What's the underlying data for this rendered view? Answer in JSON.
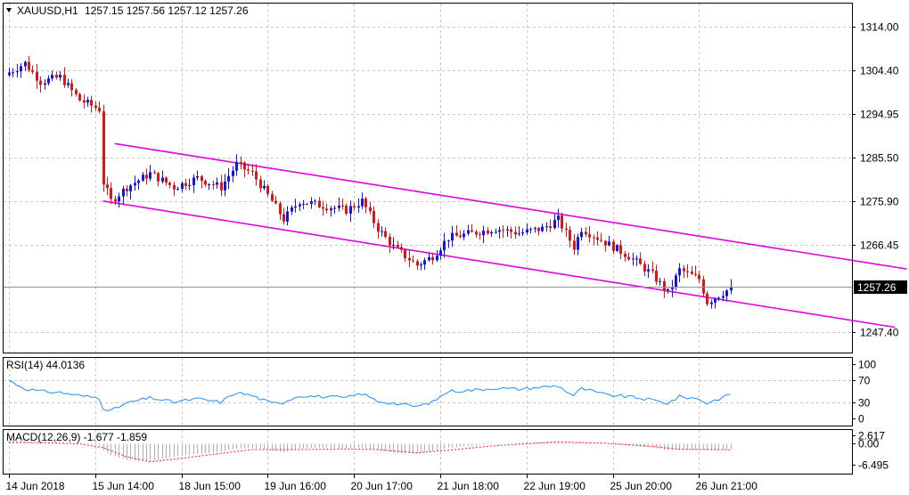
{
  "header": {
    "symbol_label": "XAUUSD,H1",
    "ohlc_text": "1257.15 1257.56 1257.12 1257.26"
  },
  "colors": {
    "bull": "#1414e6",
    "bear": "#d81818",
    "channel": "#e000e0",
    "rsi_line": "#1e90ff",
    "macd_hist": "#b4b4b4",
    "macd_signal": "#ff2020",
    "background": "#ffffff"
  },
  "chart_data": [
    {
      "type": "candlestick",
      "pane": "price",
      "yticks": [
        "1314.00",
        "1304.40",
        "1294.95",
        "1285.50",
        "1275.90",
        "1266.45",
        "1257.26",
        "1247.40"
      ],
      "current_price_label": "1257.26",
      "ylim": [
        1243,
        1319
      ],
      "xticks": [
        "14 Jun 2018",
        "15 Jun 14:00",
        "18 Jun 15:00",
        "19 Jun 16:00",
        "20 Jun 17:00",
        "21 Jun 18:00",
        "22 Jun 19:00",
        "25 Jun 20:00",
        "26 Jun 21:00"
      ],
      "close_path": [
        [
          0,
          1304
        ],
        [
          4,
          1306
        ],
        [
          8,
          1302
        ],
        [
          13,
          1303
        ],
        [
          18,
          1298
        ],
        [
          23,
          1296
        ],
        [
          24,
          1280
        ],
        [
          26,
          1276
        ],
        [
          30,
          1279
        ],
        [
          36,
          1282
        ],
        [
          42,
          1279
        ],
        [
          48,
          1281
        ],
        [
          54,
          1279
        ],
        [
          58,
          1284
        ],
        [
          62,
          1282
        ],
        [
          67,
          1276
        ],
        [
          70,
          1272
        ],
        [
          74,
          1276
        ],
        [
          80,
          1275
        ],
        [
          86,
          1274
        ],
        [
          90,
          1276
        ],
        [
          94,
          1270
        ],
        [
          98,
          1266
        ],
        [
          104,
          1262
        ],
        [
          108,
          1264
        ],
        [
          112,
          1268
        ],
        [
          118,
          1269
        ],
        [
          124,
          1270
        ],
        [
          130,
          1269
        ],
        [
          136,
          1270
        ],
        [
          140,
          1272
        ],
        [
          144,
          1266
        ],
        [
          146,
          1270
        ],
        [
          152,
          1267
        ],
        [
          158,
          1264
        ],
        [
          164,
          1260
        ],
        [
          168,
          1256
        ],
        [
          171,
          1261
        ],
        [
          176,
          1259
        ],
        [
          178,
          1254
        ],
        [
          184,
          1257
        ]
      ],
      "channel": {
        "upper": [
          [
            27,
            1288.5
          ],
          [
            229,
            1261.2
          ]
        ],
        "lower": [
          [
            24,
            1276
          ],
          [
            226,
            1248.5
          ]
        ]
      }
    },
    {
      "type": "line",
      "pane": "indicator",
      "title": "RSI(14) 44.0136",
      "yticks": [
        "100",
        "70",
        "30",
        "0"
      ],
      "ylim": [
        0,
        100
      ],
      "series": [
        {
          "values": [
            [
              0,
              70
            ],
            [
              4,
              55
            ],
            [
              8,
              50
            ],
            [
              13,
              48
            ],
            [
              18,
              42
            ],
            [
              23,
              38
            ],
            [
              24,
              20
            ],
            [
              26,
              14
            ],
            [
              30,
              28
            ],
            [
              36,
              38
            ],
            [
              42,
              30
            ],
            [
              48,
              36
            ],
            [
              54,
              30
            ],
            [
              58,
              48
            ],
            [
              62,
              42
            ],
            [
              67,
              28
            ],
            [
              70,
              30
            ],
            [
              74,
              42
            ],
            [
              80,
              40
            ],
            [
              86,
              38
            ],
            [
              90,
              46
            ],
            [
              94,
              32
            ],
            [
              98,
              28
            ],
            [
              104,
              22
            ],
            [
              108,
              30
            ],
            [
              112,
              50
            ],
            [
              118,
              52
            ],
            [
              124,
              56
            ],
            [
              130,
              54
            ],
            [
              136,
              58
            ],
            [
              140,
              60
            ],
            [
              144,
              42
            ],
            [
              146,
              55
            ],
            [
              152,
              44
            ],
            [
              158,
              40
            ],
            [
              164,
              34
            ],
            [
              168,
              28
            ],
            [
              171,
              40
            ],
            [
              176,
              36
            ],
            [
              178,
              28
            ],
            [
              184,
              44
            ]
          ]
        }
      ]
    },
    {
      "type": "bar",
      "pane": "indicator",
      "title": "MACD(12,26,9) -1.677 -1.859",
      "yticks": [
        "2.617",
        "0.00",
        "-6.495"
      ],
      "ylim": [
        -6.495,
        2.617
      ],
      "histogram": [
        [
          0,
          0.8
        ],
        [
          4,
          0.6
        ],
        [
          8,
          0.4
        ],
        [
          13,
          0.2
        ],
        [
          18,
          0.0
        ],
        [
          23,
          -0.5
        ],
        [
          24,
          -2.0
        ],
        [
          26,
          -3.5
        ],
        [
          30,
          -5.0
        ],
        [
          36,
          -5.5
        ],
        [
          42,
          -4.0
        ],
        [
          48,
          -3.2
        ],
        [
          54,
          -2.5
        ],
        [
          58,
          -1.5
        ],
        [
          62,
          -1.2
        ],
        [
          67,
          -2.2
        ],
        [
          70,
          -2.6
        ],
        [
          74,
          -1.5
        ],
        [
          80,
          -1.2
        ],
        [
          86,
          -1.5
        ],
        [
          90,
          -1.2
        ],
        [
          94,
          -2.0
        ],
        [
          98,
          -2.8
        ],
        [
          104,
          -3.0
        ],
        [
          108,
          -2.4
        ],
        [
          112,
          -1.2
        ],
        [
          118,
          -0.6
        ],
        [
          124,
          0.0
        ],
        [
          130,
          0.3
        ],
        [
          136,
          0.6
        ],
        [
          140,
          0.8
        ],
        [
          144,
          0.4
        ],
        [
          146,
          0.5
        ],
        [
          152,
          0.0
        ],
        [
          158,
          -0.6
        ],
        [
          164,
          -1.2
        ],
        [
          168,
          -2.0
        ],
        [
          171,
          -1.8
        ],
        [
          176,
          -1.9
        ],
        [
          178,
          -2.0
        ],
        [
          184,
          -1.677
        ]
      ],
      "signal": [
        [
          0,
          0.5
        ],
        [
          8,
          0.4
        ],
        [
          18,
          0.0
        ],
        [
          24,
          -1.2
        ],
        [
          30,
          -4.0
        ],
        [
          36,
          -5.6
        ],
        [
          42,
          -4.8
        ],
        [
          54,
          -3.0
        ],
        [
          62,
          -1.8
        ],
        [
          74,
          -1.8
        ],
        [
          86,
          -1.6
        ],
        [
          94,
          -1.8
        ],
        [
          104,
          -2.8
        ],
        [
          112,
          -2.0
        ],
        [
          124,
          -0.6
        ],
        [
          136,
          0.3
        ],
        [
          140,
          0.6
        ],
        [
          152,
          0.2
        ],
        [
          164,
          -0.8
        ],
        [
          171,
          -1.7
        ],
        [
          184,
          -1.859
        ]
      ]
    }
  ]
}
